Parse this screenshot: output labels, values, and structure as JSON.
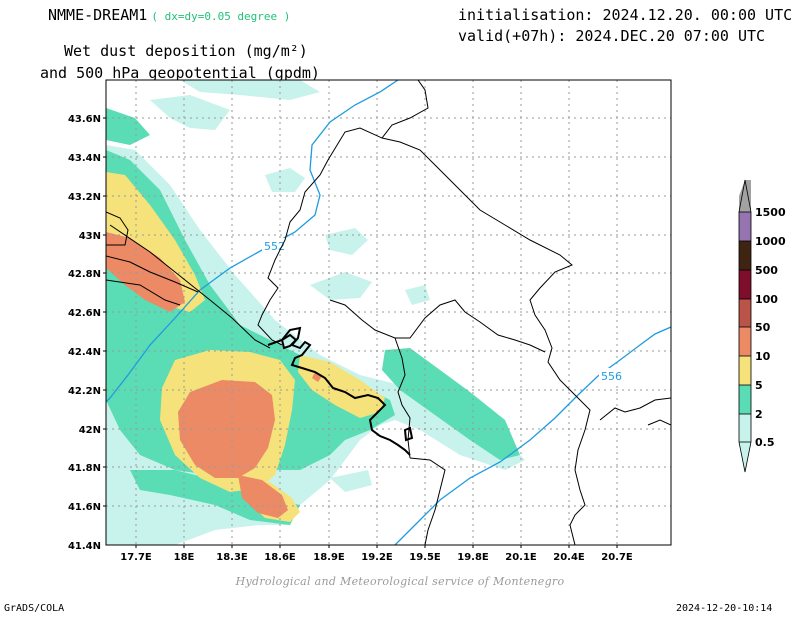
{
  "header": {
    "model": "NMME-DREAM1",
    "resolution": "( dx=dy=0.05 degree )",
    "initialisation": "initialisation: 2024.12.20. 00:00 UTC",
    "valid": "valid(+07h): 2024.DEC.20 07:00 UTC",
    "field_line1": "Wet dust deposition (mg/m²)",
    "field_line2": "and 500 hPa geopotential (gpdm)"
  },
  "map": {
    "lat_ticks": [
      "43.6N",
      "43.4N",
      "43.2N",
      "43N",
      "42.8N",
      "42.6N",
      "42.4N",
      "42.2N",
      "42N",
      "41.8N",
      "41.6N",
      "41.4N"
    ],
    "lon_ticks": [
      "17.7E",
      "18E",
      "18.3E",
      "18.6E",
      "18.9E",
      "19.2E",
      "19.5E",
      "19.8E",
      "20.1E",
      "20.4E",
      "20.7E"
    ],
    "contour_labels": [
      "552",
      "556"
    ],
    "contour_color": "#1f9be0",
    "grid": true
  },
  "legend": {
    "levels": [
      "1500",
      "1000",
      "500",
      "100",
      "50",
      "10",
      "5",
      "2",
      "0.5"
    ],
    "colors": {
      "c_05_2": "#c8f2ec",
      "c_2_5": "#5adcb4",
      "c_5_10": "#f6e27a",
      "c_10_50": "#ec8a66",
      "c_50_100": "#bb5448",
      "c_100_500": "#7e0e2c",
      "c_500_1000": "#3f2412",
      "c_1000_1500": "#9574b0",
      "c_above": "#a2a2a2"
    }
  },
  "footer": {
    "credit": "Hydrological and Meteorological service of Montenegro",
    "software": "GrADS/COLA",
    "timestamp": "2024-12-20-10:14"
  }
}
